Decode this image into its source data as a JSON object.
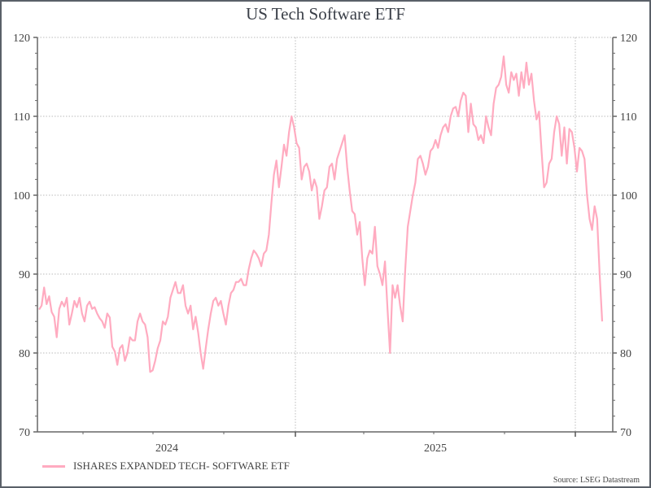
{
  "chart_data": {
    "type": "line",
    "title": "US Tech Software ETF",
    "xlabel": "",
    "ylabel": "",
    "ylim": [
      70,
      120
    ],
    "yticks": [
      70,
      80,
      90,
      100,
      110,
      120
    ],
    "ytick_labels": [
      "70",
      "80",
      "90",
      "100",
      "110",
      "120"
    ],
    "x_year_labels": [
      "2024",
      "2025"
    ],
    "grid": true,
    "legend_position": "bottom-left",
    "series": [
      {
        "name": "ISHARES EXPANDED TECH- SOFTWARE ETF",
        "color": "#ffabc0",
        "x_unit": "week index",
        "values": [
          85.5,
          86.0,
          88.3,
          86.2,
          87.2,
          85.2,
          84.6,
          82.0,
          85.6,
          86.5,
          85.9,
          87.0,
          83.6,
          85.0,
          86.6,
          85.8,
          87.0,
          85.0,
          84.0,
          86.0,
          86.5,
          85.6,
          85.8,
          85.0,
          84.4,
          84.0,
          83.2,
          85.0,
          84.5,
          80.8,
          80.2,
          78.5,
          80.6,
          81.0,
          79.0,
          80.0,
          82.0,
          81.6,
          81.6,
          84.0,
          85.0,
          84.0,
          83.6,
          82.0,
          77.6,
          77.8,
          79.0,
          80.6,
          81.6,
          84.0,
          83.6,
          84.6,
          87.0,
          88.0,
          89.0,
          87.6,
          87.6,
          88.6,
          86.0,
          85.0,
          86.0,
          83.0,
          84.6,
          82.6,
          80.0,
          78.0,
          80.6,
          83.0,
          85.0,
          86.6,
          87.0,
          86.0,
          86.6,
          85.0,
          83.6,
          86.0,
          87.6,
          88.0,
          89.0,
          89.0,
          89.4,
          88.6,
          88.6,
          90.6,
          92.0,
          93.0,
          92.6,
          92.0,
          91.0,
          92.6,
          93.0,
          95.0,
          99.0,
          102.6,
          104.4,
          101.0,
          103.6,
          106.4,
          105.0,
          108.0,
          110.0,
          108.6,
          106.6,
          106.0,
          102.0,
          103.6,
          104.0,
          103.0,
          100.6,
          102.0,
          101.0,
          97.0,
          98.6,
          100.6,
          101.0,
          103.6,
          104.0,
          102.0,
          104.6,
          105.6,
          106.6,
          107.6,
          103.6,
          100.6,
          98.0,
          97.6,
          95.0,
          96.6,
          92.0,
          88.6,
          92.0,
          93.0,
          92.6,
          96.0,
          91.0,
          90.0,
          88.6,
          91.6,
          85.6,
          80.0,
          88.6,
          87.0,
          88.6,
          86.0,
          84.0,
          90.6,
          96.0,
          98.0,
          100.0,
          101.6,
          104.6,
          105.0,
          104.0,
          102.6,
          103.6,
          105.6,
          106.0,
          107.0,
          106.0,
          107.6,
          108.6,
          109.0,
          108.0,
          110.0,
          111.0,
          111.2,
          110.0,
          112.0,
          113.0,
          112.6,
          108.0,
          111.6,
          109.0,
          108.6,
          107.0,
          107.6,
          106.6,
          110.0,
          108.6,
          107.6,
          111.6,
          113.6,
          114.0,
          115.0,
          117.6,
          114.0,
          113.0,
          115.6,
          114.6,
          115.4,
          112.6,
          115.6,
          113.6,
          116.8,
          114.0,
          115.4,
          112.0,
          109.6,
          110.6,
          105.6,
          101.0,
          101.6,
          104.0,
          104.6,
          108.0,
          110.0,
          109.0,
          105.0,
          108.6,
          104.0,
          108.4,
          108.0,
          106.0,
          103.0,
          106.0,
          105.6,
          104.6,
          100.0,
          97.0,
          95.6,
          98.6,
          97.0,
          90.0,
          84.0
        ]
      }
    ]
  },
  "legend": {
    "label": "ISHARES EXPANDED TECH- SOFTWARE ETF"
  },
  "source": "Source: LSEG Datastream"
}
